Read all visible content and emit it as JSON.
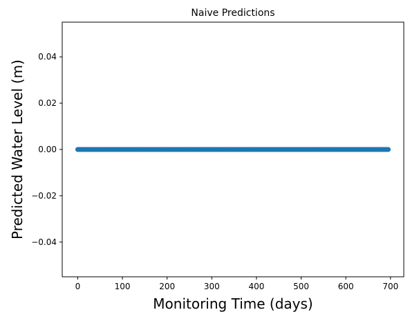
{
  "chart_data": {
    "type": "scatter",
    "title": "Naive Predictions",
    "xlabel": "Monitoring Time (days)",
    "ylabel": "Predicted Water Level (m)",
    "xlim": [
      -34.7,
      729.7
    ],
    "ylim": [
      -0.055,
      0.055
    ],
    "x_ticks": [
      0,
      100,
      200,
      300,
      400,
      500,
      600,
      700
    ],
    "x_tick_labels": [
      "0",
      "100",
      "200",
      "300",
      "400",
      "500",
      "600",
      "700"
    ],
    "y_ticks": [
      -0.04,
      -0.02,
      0.0,
      0.02,
      0.04
    ],
    "y_tick_labels": [
      "−0.04",
      "−0.02",
      "0.00",
      "0.02",
      "0.04"
    ],
    "grid": false,
    "series": [
      {
        "color": "#1f77b4",
        "x_start": 0,
        "x_end": 695,
        "x_step": 1,
        "y": 0.0
      }
    ]
  }
}
